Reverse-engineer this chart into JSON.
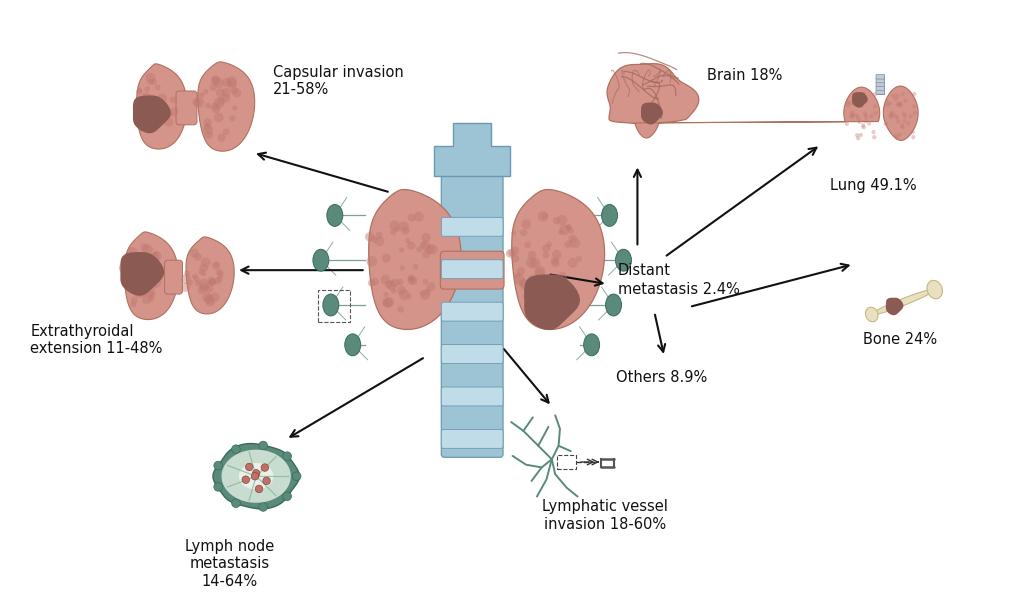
{
  "background_color": "#ffffff",
  "thyroid_color": "#d4948a",
  "thyroid_dark": "#c07870",
  "thyroid_edge": "#b07060",
  "trachea_color": "#9dc4d4",
  "trachea_edge": "#6a9ab0",
  "trachea_light": "#c0dce8",
  "tumor_color": "#8b5a52",
  "tumor_dark": "#6b3a32",
  "lymph_green": "#5a8a7a",
  "lymph_light_green": "#8ab89a",
  "lymph_inner": "#c8ddd0",
  "lymph_center": "#e8f0e8",
  "bone_color": "#e8e0c0",
  "bone_edge": "#c8b880",
  "brain_color": "#d4948a",
  "brain_edge": "#b07060",
  "lung_color": "#d4948a",
  "lung_edge": "#b07060",
  "vessel_color": "#5a8a7a",
  "arrow_color": "#111111",
  "text_color": "#111111",
  "labels": {
    "capsular": "Capsular invasion\n21-58%",
    "extrathyroidal": "Extrathyroidal\nextension 11-48%",
    "lymph_node": "Lymph node\nmetastasis\n14-64%",
    "lymphatic": "Lymphatic vessel\ninvasion 18-60%",
    "distant": "Distant\nmetastasis 2.4%",
    "brain": "Brain 18%",
    "lung": "Lung 49.1%",
    "bone": "Bone 24%",
    "others": "Others 8.9%"
  },
  "figsize": [
    10.24,
    6.12
  ],
  "dpi": 100
}
